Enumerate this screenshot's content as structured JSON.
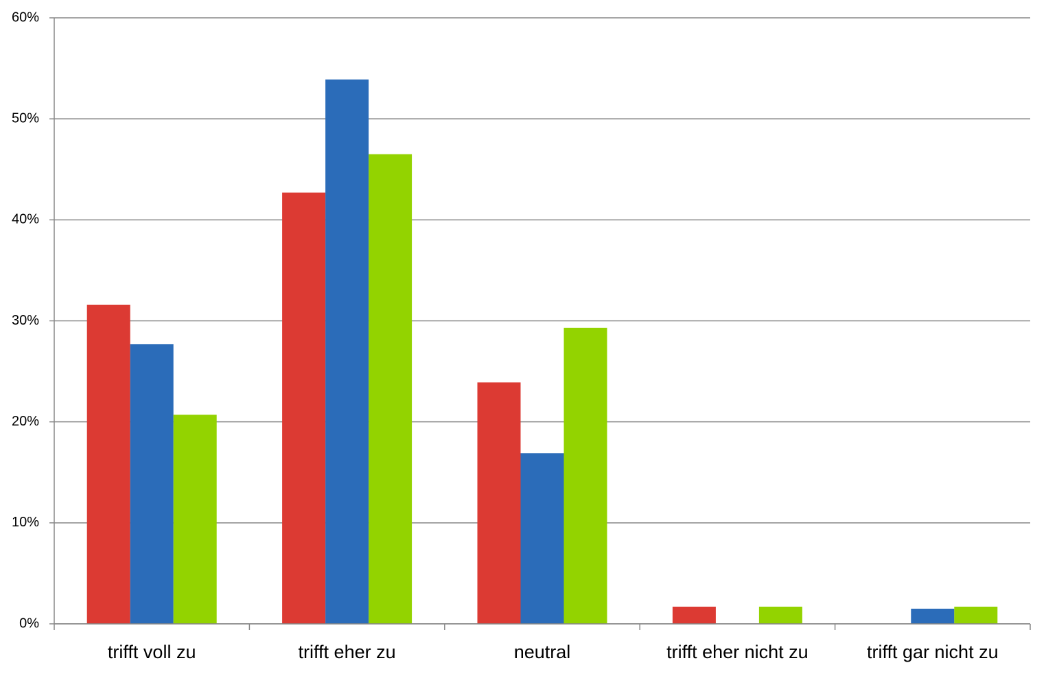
{
  "chart_data": {
    "type": "bar",
    "categories": [
      "trifft voll zu",
      "trifft eher zu",
      "neutral",
      "trifft eher nicht zu",
      "trifft gar nicht zu"
    ],
    "series": [
      {
        "color": "#dc3a33",
        "values": [
          31.6,
          42.7,
          23.9,
          1.7,
          0
        ]
      },
      {
        "color": "#2b6cb9",
        "values": [
          27.7,
          53.9,
          16.9,
          0,
          1.5
        ]
      },
      {
        "color": "#93d300",
        "values": [
          20.7,
          46.5,
          29.3,
          1.7,
          1.7
        ]
      }
    ],
    "ylim": [
      0,
      60
    ],
    "yticks": [
      {
        "value": 0,
        "label": "0%"
      },
      {
        "value": 10,
        "label": "10%"
      },
      {
        "value": 20,
        "label": "20%"
      },
      {
        "value": 30,
        "label": "30%"
      },
      {
        "value": 40,
        "label": "40%"
      },
      {
        "value": 50,
        "label": "50%"
      },
      {
        "value": 60,
        "label": "60%"
      }
    ],
    "grid": true
  }
}
